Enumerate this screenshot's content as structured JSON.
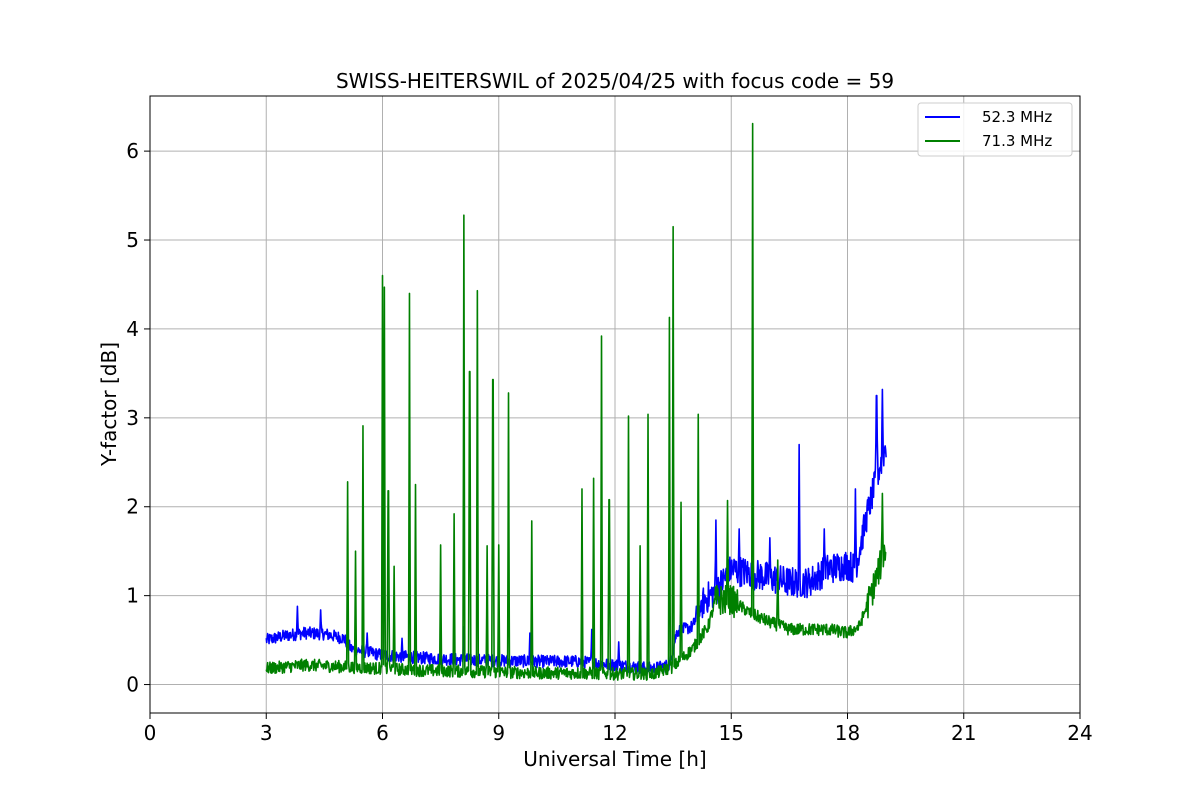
{
  "chart_data": {
    "type": "line",
    "title": "SWISS-HEITERSWIL of 2025/04/25 with focus code = 59",
    "xlabel": "Universal Time [h]",
    "ylabel": "Y-factor [dB]",
    "xlim": [
      0,
      24
    ],
    "ylim": [
      -0.32,
      6.62
    ],
    "xticks": [
      0,
      3,
      6,
      9,
      12,
      15,
      18,
      21,
      24
    ],
    "yticks": [
      0,
      1,
      2,
      3,
      4,
      5,
      6
    ],
    "grid": true,
    "legend_position": "top-right",
    "series": [
      {
        "name": "52.3 MHz",
        "color": "#0000ff",
        "base": [
          [
            3.0,
            0.5
          ],
          [
            3.5,
            0.55
          ],
          [
            4.0,
            0.58
          ],
          [
            4.5,
            0.57
          ],
          [
            5.0,
            0.52
          ],
          [
            5.2,
            0.4
          ],
          [
            6.0,
            0.33
          ],
          [
            7.0,
            0.3
          ],
          [
            8.0,
            0.28
          ],
          [
            9.0,
            0.27
          ],
          [
            10.0,
            0.26
          ],
          [
            11.0,
            0.26
          ],
          [
            12.0,
            0.22
          ],
          [
            12.5,
            0.2
          ],
          [
            13.0,
            0.18
          ],
          [
            13.4,
            0.22
          ],
          [
            13.6,
            0.6
          ],
          [
            14.0,
            0.65
          ],
          [
            14.3,
            0.95
          ],
          [
            14.6,
            1.05
          ],
          [
            15.0,
            1.3
          ],
          [
            15.5,
            1.25
          ],
          [
            16.0,
            1.2
          ],
          [
            16.5,
            1.15
          ],
          [
            17.0,
            1.15
          ],
          [
            17.5,
            1.3
          ],
          [
            18.0,
            1.35
          ],
          [
            18.2,
            1.3
          ],
          [
            18.5,
            1.9
          ],
          [
            18.8,
            2.4
          ],
          [
            19.0,
            2.7
          ]
        ],
        "spikes": [
          [
            3.8,
            0.88
          ],
          [
            4.4,
            0.84
          ],
          [
            5.6,
            0.58
          ],
          [
            6.5,
            0.52
          ],
          [
            8.1,
            0.65
          ],
          [
            9.8,
            0.58
          ],
          [
            11.4,
            0.62
          ],
          [
            12.1,
            0.48
          ],
          [
            13.7,
            0.9
          ],
          [
            14.1,
            0.88
          ],
          [
            14.6,
            1.85
          ],
          [
            15.2,
            1.75
          ],
          [
            16.0,
            1.65
          ],
          [
            16.75,
            2.7
          ],
          [
            17.4,
            1.75
          ],
          [
            18.2,
            2.2
          ],
          [
            18.75,
            3.25
          ],
          [
            18.9,
            3.32
          ]
        ]
      },
      {
        "name": "71.3 MHz",
        "color": "#008000",
        "base": [
          [
            3.0,
            0.18
          ],
          [
            4.0,
            0.22
          ],
          [
            5.0,
            0.2
          ],
          [
            6.0,
            0.18
          ],
          [
            7.0,
            0.16
          ],
          [
            8.0,
            0.15
          ],
          [
            9.0,
            0.14
          ],
          [
            10.0,
            0.13
          ],
          [
            11.0,
            0.13
          ],
          [
            12.0,
            0.12
          ],
          [
            13.0,
            0.12
          ],
          [
            13.5,
            0.2
          ],
          [
            14.0,
            0.4
          ],
          [
            14.4,
            0.65
          ],
          [
            14.6,
            0.95
          ],
          [
            15.0,
            0.95
          ],
          [
            15.5,
            0.8
          ],
          [
            16.0,
            0.7
          ],
          [
            16.5,
            0.62
          ],
          [
            17.0,
            0.62
          ],
          [
            17.5,
            0.62
          ],
          [
            18.0,
            0.58
          ],
          [
            18.3,
            0.65
          ],
          [
            18.6,
            1.0
          ],
          [
            19.0,
            1.55
          ]
        ],
        "spikes": [
          [
            5.1,
            2.28
          ],
          [
            5.3,
            1.5
          ],
          [
            5.5,
            2.91
          ],
          [
            6.0,
            4.6
          ],
          [
            6.05,
            4.47
          ],
          [
            6.15,
            2.18
          ],
          [
            6.3,
            1.33
          ],
          [
            6.7,
            4.4
          ],
          [
            6.85,
            2.25
          ],
          [
            7.5,
            1.57
          ],
          [
            7.85,
            1.92
          ],
          [
            8.1,
            5.28
          ],
          [
            8.25,
            3.52
          ],
          [
            8.45,
            4.43
          ],
          [
            8.7,
            1.56
          ],
          [
            8.85,
            3.43
          ],
          [
            9.0,
            1.57
          ],
          [
            9.25,
            3.28
          ],
          [
            9.85,
            1.84
          ],
          [
            11.15,
            2.2
          ],
          [
            11.45,
            2.32
          ],
          [
            11.65,
            3.92
          ],
          [
            11.85,
            2.08
          ],
          [
            12.35,
            3.02
          ],
          [
            12.65,
            1.56
          ],
          [
            12.85,
            3.04
          ],
          [
            13.4,
            4.13
          ],
          [
            13.5,
            5.15
          ],
          [
            13.7,
            2.05
          ],
          [
            14.15,
            3.04
          ],
          [
            14.9,
            2.07
          ],
          [
            15.55,
            6.31
          ],
          [
            16.2,
            1.4
          ],
          [
            18.9,
            2.15
          ]
        ]
      }
    ]
  }
}
